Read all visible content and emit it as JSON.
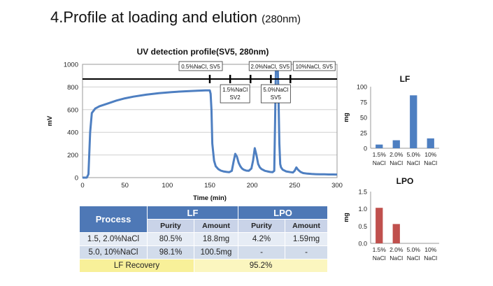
{
  "slide": {
    "title_main": "4.Profile at loading and elution",
    "title_paren": "(280nm)"
  },
  "colors": {
    "line": "#4e7fc1",
    "lf_bar": "#4e7fc1",
    "lpo_bar": "#c0504d",
    "header": "#4e78b6"
  },
  "chart_data": [
    {
      "type": "line",
      "title": "UV detection profile(SV5, 280nm)",
      "xlabel": "Time (min)",
      "ylabel": "mV",
      "xlim": [
        0,
        300
      ],
      "ylim": [
        0,
        1000
      ],
      "xticks": [
        0,
        50,
        100,
        150,
        200,
        250,
        300
      ],
      "yticks": [
        0,
        200,
        400,
        600,
        800,
        1000
      ],
      "grid": "horizontal",
      "series": [
        {
          "x": [
            0,
            5,
            7,
            9,
            11,
            15,
            20,
            30,
            40,
            50,
            60,
            75,
            90,
            105,
            120,
            135,
            145,
            150,
            151,
            152,
            153,
            155,
            157,
            160,
            163,
            166,
            170,
            173,
            176,
            178,
            180,
            182,
            184,
            186,
            188,
            190,
            193,
            196,
            199,
            201,
            203,
            205,
            207,
            209,
            211,
            213,
            215,
            218,
            221,
            224,
            226,
            227,
            228,
            229,
            230,
            231,
            232,
            233,
            234,
            236,
            240,
            245,
            248,
            250,
            252,
            254,
            257,
            260,
            265,
            270,
            275,
            280,
            285,
            290,
            295,
            300
          ],
          "y": [
            0,
            0,
            30,
            400,
            570,
            610,
            630,
            655,
            680,
            700,
            715,
            732,
            745,
            755,
            762,
            767,
            770,
            770,
            740,
            600,
            300,
            150,
            100,
            75,
            62,
            55,
            50,
            48,
            60,
            140,
            210,
            185,
            130,
            100,
            80,
            70,
            62,
            60,
            80,
            150,
            260,
            200,
            120,
            90,
            75,
            68,
            60,
            55,
            50,
            48,
            60,
            500,
            1000,
            1000,
            1000,
            700,
            300,
            120,
            90,
            70,
            55,
            48,
            45,
            60,
            90,
            70,
            50,
            40,
            35,
            32,
            30,
            29,
            29,
            28,
            28,
            27
          ]
        }
      ],
      "annotations": [
        {
          "label": "0.5%NaCl, SV5",
          "time": 150
        },
        {
          "label": "1.5%NaCl\nSV2",
          "time": 174
        },
        {
          "label": "2.0%NaCl, SV5",
          "time": 198
        },
        {
          "label": "5.0%NaCl\nSV5",
          "time": 222
        },
        {
          "label": "10%NaCl, SV5",
          "time": 245
        }
      ],
      "event_line_y": 870
    },
    {
      "type": "bar",
      "title": "LF",
      "ylabel": "mg",
      "ylim": [
        0,
        100
      ],
      "yticks": [
        0,
        25,
        50,
        75,
        100
      ],
      "categories": [
        "1.5%\nNaCl",
        "2.0%\nNaCl",
        "5.0%\nNaCl",
        "10%\nNaCl"
      ],
      "values": [
        6,
        13,
        86,
        16
      ]
    },
    {
      "type": "bar",
      "title": "LPO",
      "ylabel": "mg",
      "ylim": [
        0,
        1.5
      ],
      "yticks": [
        0.0,
        0.5,
        1.0,
        1.5
      ],
      "categories": [
        "1.5%\nNaCl",
        "2.0%\nNaCl",
        "5.0%\nNaCl",
        "10%\nNaCl"
      ],
      "values": [
        1.03,
        0.56,
        0,
        0
      ]
    }
  ],
  "table": {
    "process_header": "Process",
    "lf_header": "LF",
    "lpo_header": "LPO",
    "sub_headers": [
      "Purity",
      "Amount",
      "Purity",
      "Amount"
    ],
    "rows": [
      {
        "process": "1.5, 2.0%NaCl",
        "lf_purity": "80.5%",
        "lf_amount": "18.8mg",
        "lpo_purity": "4.2%",
        "lpo_amount": "1.59mg"
      },
      {
        "process": "5.0, 10%NaCl",
        "lf_purity": "98.1%",
        "lf_amount": "100.5mg",
        "lpo_purity": "-",
        "lpo_amount": "-"
      }
    ],
    "recovery_label": "LF Recovery",
    "recovery_value": "95.2%"
  }
}
